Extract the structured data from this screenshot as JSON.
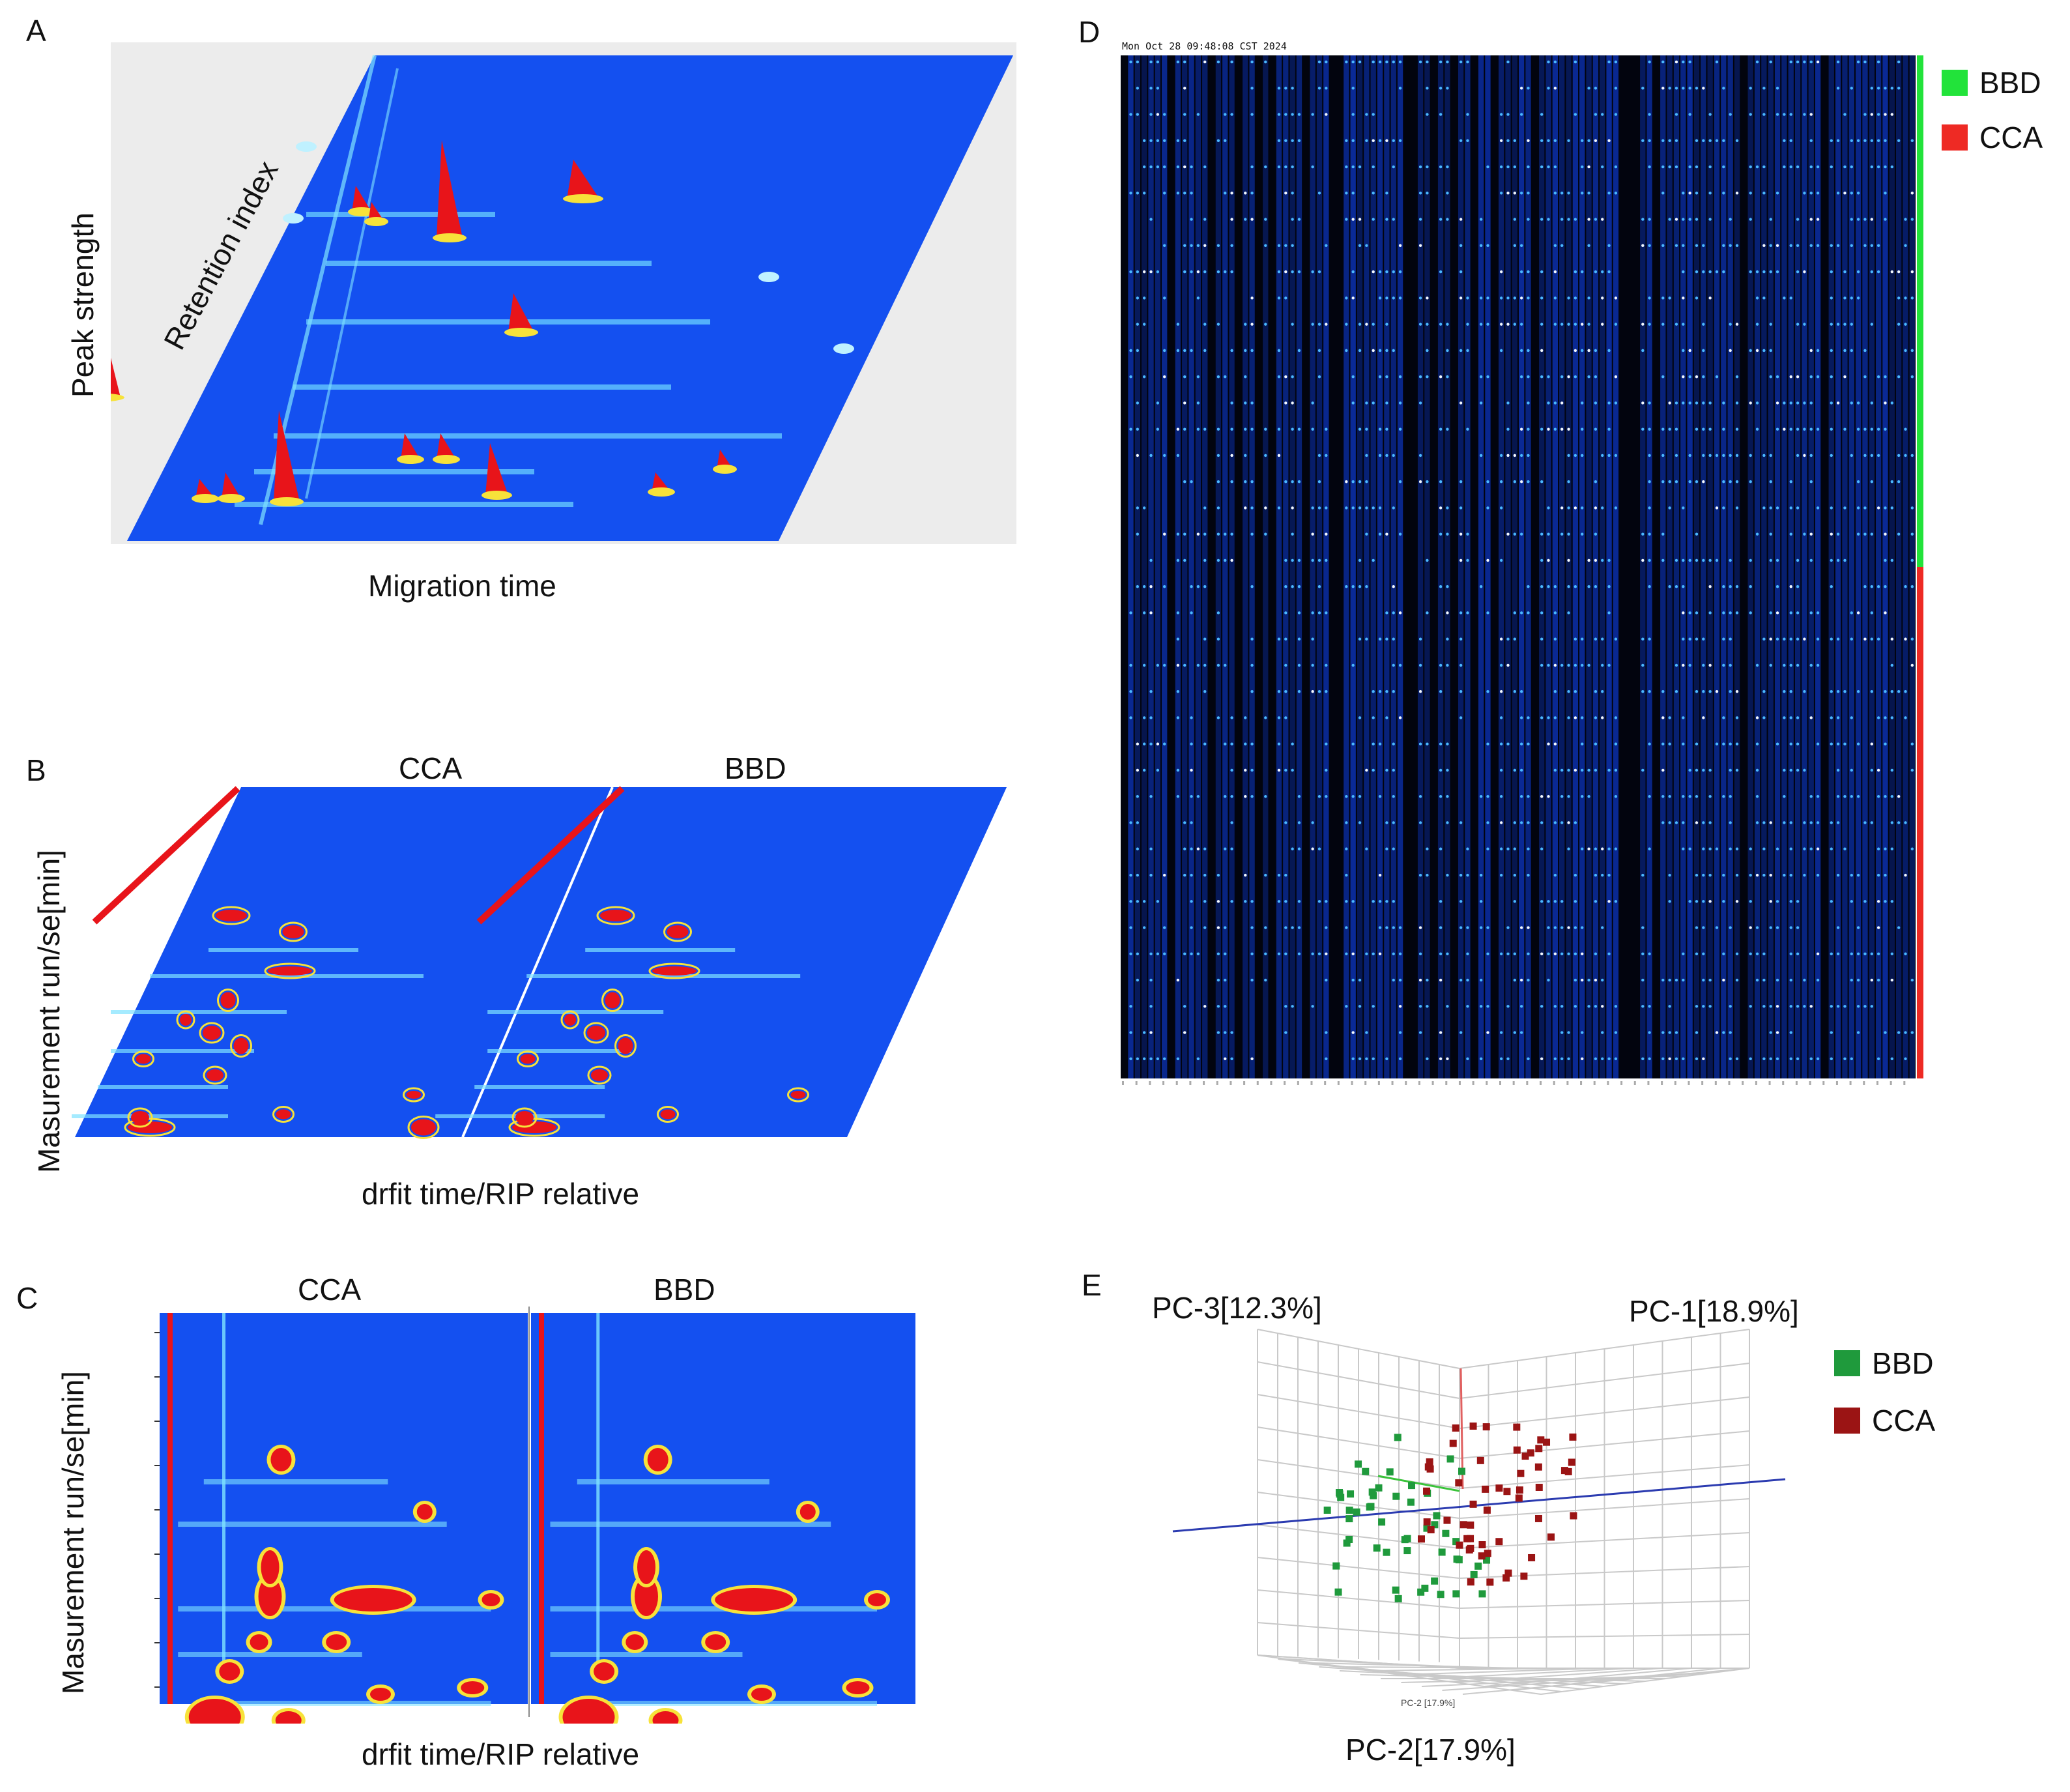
{
  "panels": {
    "A": {
      "label": "A",
      "y_axis_label": "Peak strength",
      "diag_axis_label": "Retention index",
      "x_axis_label": "Migration time"
    },
    "B": {
      "label": "B",
      "groups": [
        "CCA",
        "BBD"
      ],
      "y_axis_label": "Masurement run/se[min]",
      "x_axis_label": "drfit time/RIP relative"
    },
    "C": {
      "label": "C",
      "groups": [
        "CCA",
        "BBD"
      ],
      "y_axis_label": "Masurement run/se[min]",
      "x_axis_label": "drfit time/RIP relative"
    },
    "D": {
      "label": "D",
      "header_text": "Mon Oct 28 09:48:08 CST 2024",
      "legend": [
        {
          "name": "BBD",
          "color": "#22e33a"
        },
        {
          "name": "CCA",
          "color": "#ee2a24"
        }
      ]
    },
    "E": {
      "label": "E",
      "axis_pc1": "PC-1[18.9%]",
      "axis_pc2": "PC-2[17.9%]",
      "axis_pc3": "PC-3[12.3%]",
      "legend": [
        {
          "name": "BBD",
          "color": "#1f9a3c"
        },
        {
          "name": "CCA",
          "color": "#9b1414"
        }
      ]
    }
  },
  "colors": {
    "plot_blue": "#1450f0",
    "peak_red": "#e8141a",
    "heatmap_bg": "#02040e",
    "heatmap_cell": "#1a60ff",
    "grid_gray": "#c9c9c9"
  }
}
